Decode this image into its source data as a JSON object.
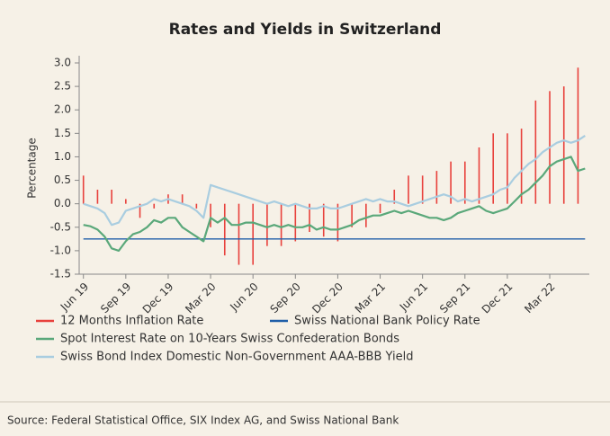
{
  "chart_data": {
    "type": "line",
    "title": "Rates and Yields in Switzerland",
    "y_label": "Percentage",
    "source": "Source: Federal Statistical Office, SIX Index AG, and Swiss National Bank",
    "xlim": [
      -0.3,
      35.8
    ],
    "xticks": [
      {
        "value": 0,
        "label": "Jun 19"
      },
      {
        "value": 3,
        "label": "Sep 19"
      },
      {
        "value": 6,
        "label": "Dec 19"
      },
      {
        "value": 9,
        "label": "Mar 20"
      },
      {
        "value": 12,
        "label": "Jun 20"
      },
      {
        "value": 15,
        "label": "Sep 20"
      },
      {
        "value": 18,
        "label": "Dec 20"
      },
      {
        "value": 21,
        "label": "Mar 21"
      },
      {
        "value": 24,
        "label": "Jun 21"
      },
      {
        "value": 27,
        "label": "Sep 21"
      },
      {
        "value": 30,
        "label": "Dec 21"
      },
      {
        "value": 33,
        "label": "Mar 22"
      }
    ],
    "ylim": [
      -1.5,
      3.0
    ],
    "yticks": [
      -1.5,
      {
        "value": -1,
        "label": "-1.0"
      },
      -0.5,
      {
        "value": 0,
        "label": "0.0"
      },
      0.5,
      {
        "value": 1,
        "label": "1.0"
      },
      1.5,
      {
        "value": 2,
        "label": "2.0"
      },
      2.5,
      {
        "value": 3,
        "label": "3.0"
      }
    ],
    "grid": false,
    "x": [
      0,
      0.5,
      1,
      1.5,
      2,
      2.5,
      3,
      3.5,
      4,
      4.5,
      5,
      5.5,
      6,
      6.5,
      7,
      7.5,
      8,
      8.5,
      9,
      9.5,
      10,
      10.5,
      11,
      11.5,
      12,
      12.5,
      13,
      13.5,
      14,
      14.5,
      15,
      15.5,
      16,
      16.5,
      17,
      17.5,
      18,
      18.5,
      19,
      19.5,
      20,
      20.5,
      21,
      21.5,
      22,
      22.5,
      23,
      23.5,
      24,
      24.5,
      25,
      25.5,
      26,
      26.5,
      27,
      27.5,
      28,
      28.5,
      29,
      29.5,
      30,
      30.5,
      31,
      31.5,
      32,
      32.5,
      33,
      33.5,
      34,
      34.5,
      35,
      35.5
    ],
    "series": [
      {
        "name": "12 Months Inflation Rate",
        "type": "bar",
        "color": "#e8413c",
        "x": [
          0,
          1,
          2,
          3,
          4,
          5,
          6,
          7,
          8,
          9,
          10,
          11,
          12,
          13,
          14,
          15,
          16,
          17,
          18,
          19,
          20,
          21,
          22,
          23,
          24,
          25,
          26,
          27,
          28,
          29,
          30,
          31,
          32,
          33,
          34,
          35
        ],
        "values": [
          0.6,
          0.3,
          0.3,
          0.1,
          -0.3,
          -0.1,
          0.2,
          0.2,
          -0.1,
          -0.5,
          -1.1,
          -1.3,
          -1.3,
          -0.9,
          -0.9,
          -0.8,
          -0.6,
          -0.7,
          -0.8,
          -0.5,
          -0.5,
          -0.2,
          0.3,
          0.6,
          0.6,
          0.7,
          0.9,
          0.9,
          1.2,
          1.5,
          1.5,
          1.6,
          2.2,
          2.4,
          2.5,
          2.9
        ]
      },
      {
        "name": "Swiss National Bank Policy Rate",
        "type": "line",
        "color": "#1f5ea8",
        "values": [
          -0.75,
          -0.75,
          -0.75,
          -0.75,
          -0.75,
          -0.75,
          -0.75,
          -0.75,
          -0.75,
          -0.75,
          -0.75,
          -0.75,
          -0.75,
          -0.75,
          -0.75,
          -0.75,
          -0.75,
          -0.75,
          -0.75,
          -0.75,
          -0.75,
          -0.75,
          -0.75,
          -0.75,
          -0.75,
          -0.75,
          -0.75,
          -0.75,
          -0.75,
          -0.75,
          -0.75,
          -0.75,
          -0.75,
          -0.75,
          -0.75,
          -0.75,
          -0.75,
          -0.75,
          -0.75,
          -0.75,
          -0.75,
          -0.75,
          -0.75,
          -0.75,
          -0.75,
          -0.75,
          -0.75,
          -0.75,
          -0.75,
          -0.75,
          -0.75,
          -0.75,
          -0.75,
          -0.75,
          -0.75,
          -0.75,
          -0.75,
          -0.75,
          -0.75,
          -0.75,
          -0.75,
          -0.75,
          -0.75,
          -0.75,
          -0.75,
          -0.75,
          -0.75,
          -0.75,
          -0.75,
          -0.75,
          -0.75,
          -0.75
        ]
      },
      {
        "name": "Spot Interest Rate on 10-Years Swiss Confederation Bonds",
        "type": "line",
        "color": "#5aa87a",
        "values": [
          -0.45,
          -0.48,
          -0.55,
          -0.7,
          -0.95,
          -1.0,
          -0.8,
          -0.65,
          -0.6,
          -0.5,
          -0.35,
          -0.4,
          -0.3,
          -0.3,
          -0.5,
          -0.6,
          -0.7,
          -0.8,
          -0.3,
          -0.4,
          -0.3,
          -0.45,
          -0.45,
          -0.4,
          -0.4,
          -0.45,
          -0.5,
          -0.45,
          -0.5,
          -0.45,
          -0.5,
          -0.5,
          -0.45,
          -0.55,
          -0.5,
          -0.55,
          -0.55,
          -0.5,
          -0.45,
          -0.35,
          -0.3,
          -0.25,
          -0.25,
          -0.2,
          -0.15,
          -0.2,
          -0.15,
          -0.2,
          -0.25,
          -0.3,
          -0.3,
          -0.35,
          -0.3,
          -0.2,
          -0.15,
          -0.1,
          -0.05,
          -0.15,
          -0.2,
          -0.15,
          -0.1,
          0.05,
          0.2,
          0.3,
          0.45,
          0.6,
          0.8,
          0.9,
          0.95,
          1.0,
          0.7,
          0.75
        ]
      },
      {
        "name": "Swiss Bond Index Domestic Non-Government AAA-BBB Yield",
        "type": "line",
        "color": "#a9cde0",
        "values": [
          0.0,
          -0.05,
          -0.1,
          -0.2,
          -0.45,
          -0.4,
          -0.15,
          -0.1,
          -0.05,
          0.0,
          0.1,
          0.05,
          0.1,
          0.05,
          0.0,
          -0.05,
          -0.15,
          -0.3,
          0.4,
          0.35,
          0.3,
          0.25,
          0.2,
          0.15,
          0.1,
          0.05,
          0.0,
          0.05,
          0.0,
          -0.05,
          0.0,
          -0.05,
          -0.1,
          -0.1,
          -0.05,
          -0.1,
          -0.1,
          -0.05,
          0.0,
          0.05,
          0.1,
          0.05,
          0.1,
          0.05,
          0.05,
          0.0,
          -0.05,
          0.0,
          0.05,
          0.1,
          0.15,
          0.2,
          0.15,
          0.05,
          0.1,
          0.05,
          0.1,
          0.15,
          0.2,
          0.3,
          0.35,
          0.55,
          0.7,
          0.85,
          0.95,
          1.1,
          1.2,
          1.3,
          1.35,
          1.3,
          1.35,
          1.45
        ]
      }
    ]
  }
}
